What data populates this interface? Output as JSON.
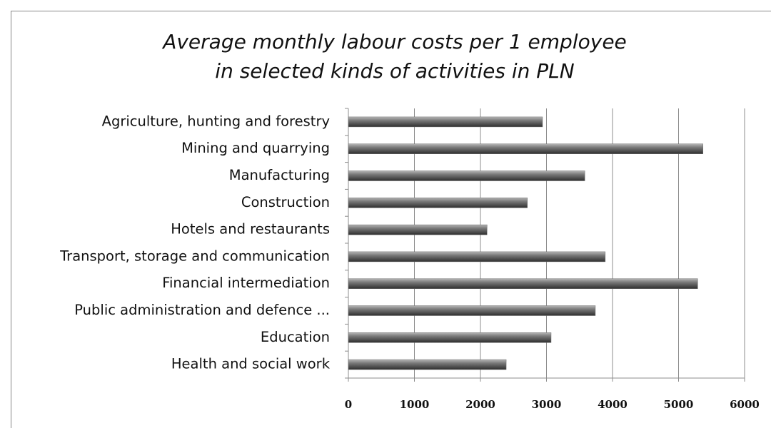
{
  "chart_data": {
    "type": "bar",
    "orientation": "horizontal",
    "title": [
      "Average monthly labour costs per 1 employee",
      "in selected kinds of activities in PLN"
    ],
    "categories": [
      "Agriculture, hunting and forestry",
      "Mining and quarrying",
      "Manufacturing",
      "Construction",
      "Hotels and restaurants",
      "Transport, storage and communication",
      "Financial intermediation",
      "Public administration and defence ...",
      "Education",
      "Health and social work"
    ],
    "values": [
      2940,
      5370,
      3580,
      2710,
      2100,
      3890,
      5290,
      3740,
      3070,
      2390
    ],
    "color": "#6e6e6e",
    "xlim": [
      0,
      6000
    ],
    "xticks": [
      0,
      1000,
      2000,
      3000,
      4000,
      5000,
      6000
    ],
    "grid": true
  }
}
